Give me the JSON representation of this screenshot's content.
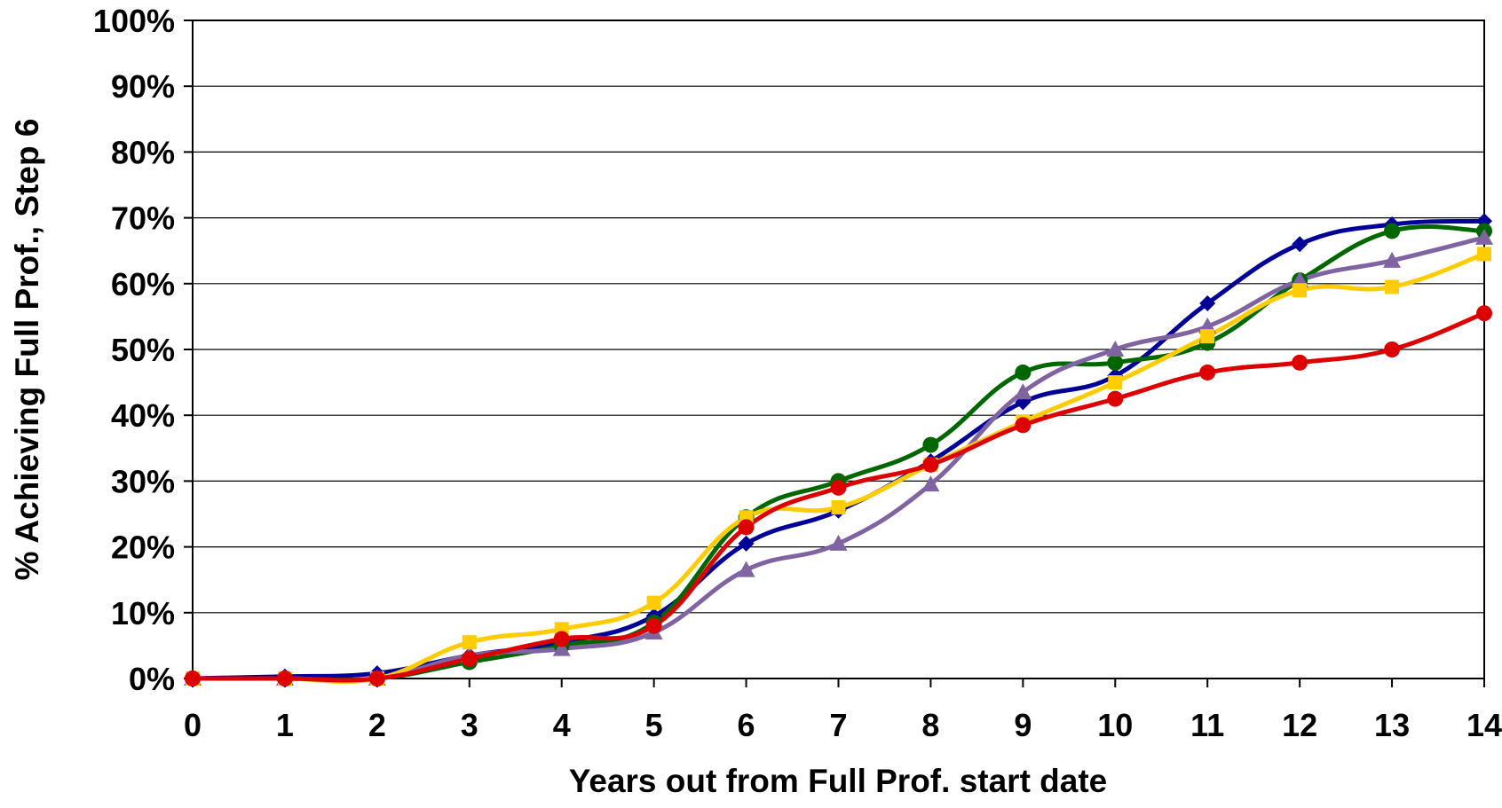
{
  "chart_data": {
    "type": "line",
    "title": "",
    "xlabel": "Years out from Full Prof. start date",
    "ylabel": "% Achieving Full Prof., Step 6",
    "x": [
      0,
      1,
      2,
      3,
      4,
      5,
      6,
      7,
      8,
      9,
      10,
      11,
      12,
      13,
      14
    ],
    "x_tick_labels": [
      "0",
      "1",
      "2",
      "3",
      "4",
      "5",
      "6",
      "7",
      "8",
      "9",
      "10",
      "11",
      "12",
      "13",
      "14"
    ],
    "y_tick_labels": [
      "0%",
      "10%",
      "20%",
      "30%",
      "40%",
      "50%",
      "60%",
      "70%",
      "80%",
      "90%",
      "100%"
    ],
    "xlim": [
      0,
      14
    ],
    "ylim": [
      0,
      100
    ],
    "grid": "horizontal",
    "legend": "none",
    "series": [
      {
        "color": "#000099",
        "marker": "diamond",
        "values": [
          0,
          0.3,
          0.8,
          3.5,
          5.5,
          9.5,
          20.5,
          25.5,
          33,
          42,
          46,
          57,
          66,
          69,
          69.5
        ]
      },
      {
        "color": "#006600",
        "marker": "circle",
        "values": [
          0,
          0,
          0,
          2.5,
          5,
          8.5,
          24.5,
          30,
          35.5,
          46.5,
          48,
          51,
          60.5,
          68,
          68
        ]
      },
      {
        "color": "#8064A2",
        "marker": "triangle",
        "values": [
          0,
          0,
          0,
          3.5,
          4.5,
          7,
          16.5,
          20.5,
          29.5,
          43.5,
          50,
          53.5,
          60.5,
          63.5,
          67
        ]
      },
      {
        "color": "#FFCC00",
        "marker": "square",
        "values": [
          0,
          0,
          0,
          5.5,
          7.5,
          11.5,
          24.5,
          26,
          32.5,
          39,
          45,
          52,
          59,
          59.5,
          64.5
        ]
      },
      {
        "color": "#DD0000",
        "marker": "circle",
        "values": [
          0,
          0,
          0,
          3,
          6,
          8,
          23,
          29,
          32.5,
          38.5,
          42.5,
          46.5,
          48,
          50,
          55.5
        ]
      }
    ]
  }
}
